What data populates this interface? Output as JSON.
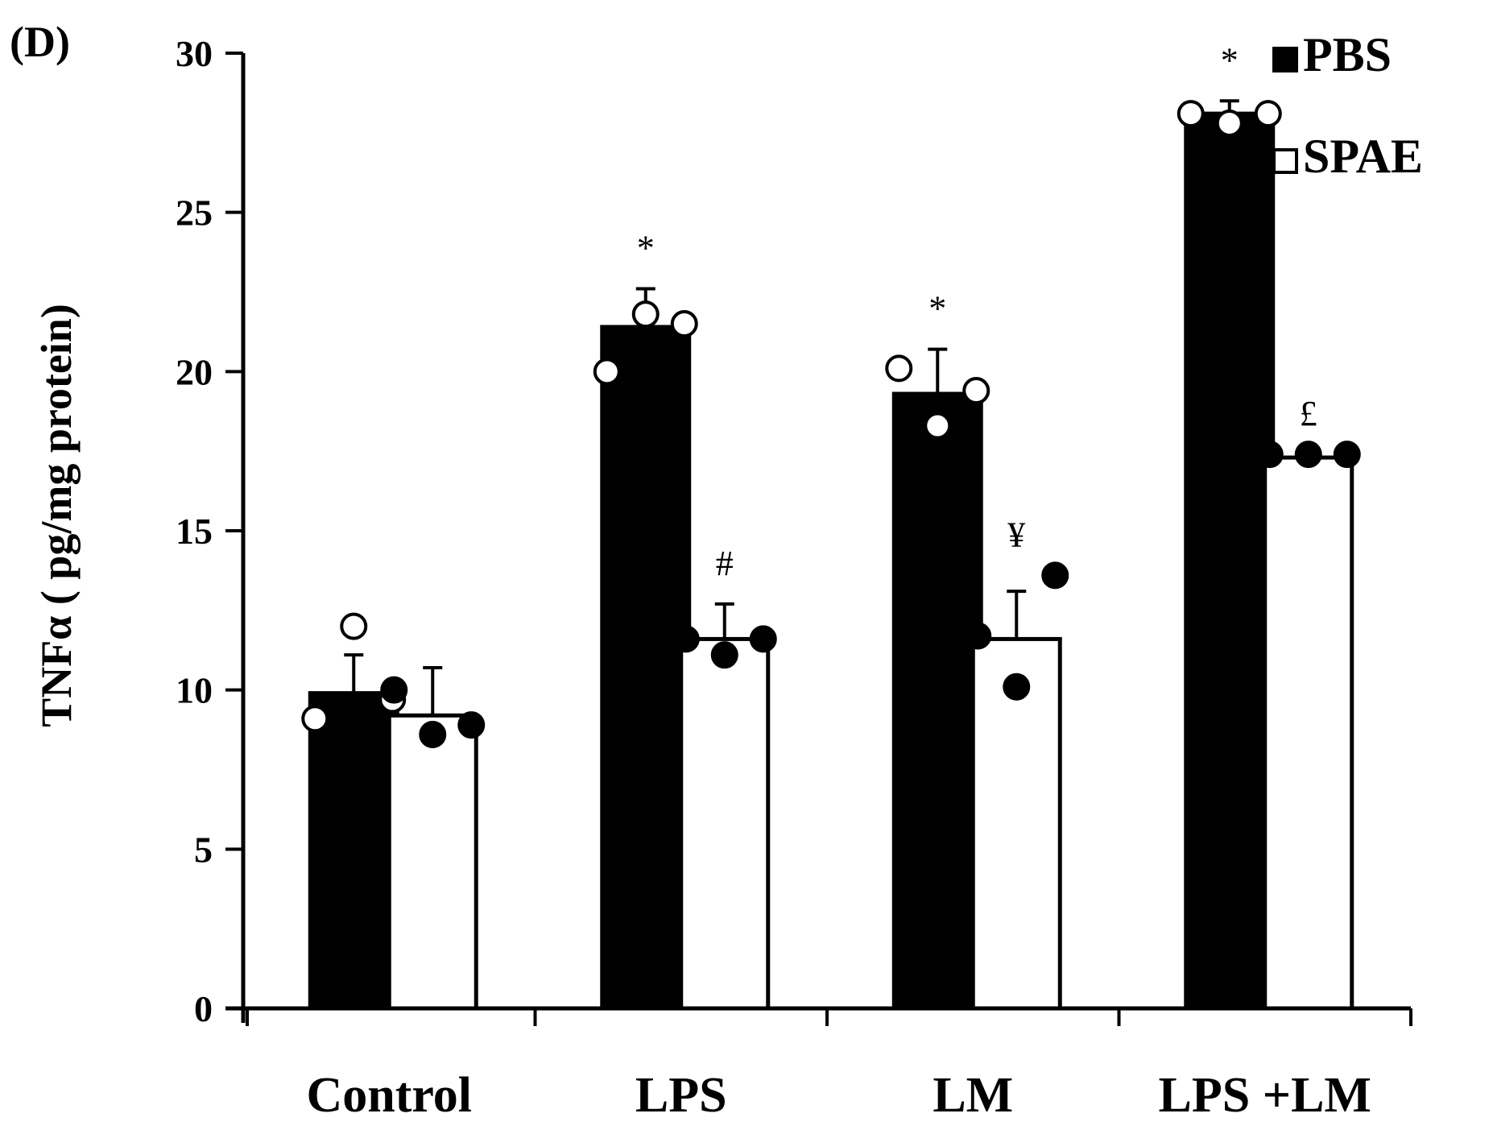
{
  "chart_data": {
    "type": "bar",
    "panel_label": "(D)",
    "title": "",
    "xlabel": "",
    "ylabel": "TNFα ( pg/mg protein)",
    "ylim": [
      0,
      30
    ],
    "yticks": [
      0,
      5,
      10,
      15,
      20,
      25,
      30
    ],
    "grid": false,
    "legend_position": "top-right",
    "categories": [
      "Control",
      "LPS",
      "LM",
      "LPS +LM"
    ],
    "series": [
      {
        "name": "PBS",
        "fill": "#000000",
        "values": [
          9.9,
          21.4,
          19.3,
          28.1
        ],
        "errors": [
          1.2,
          1.2,
          1.4,
          0.4
        ],
        "annotations": [
          "",
          "*",
          "*",
          "*"
        ],
        "points": [
          [
            9.1,
            12.0,
            9.7
          ],
          [
            20.0,
            21.8,
            21.5
          ],
          [
            20.1,
            18.3,
            19.4
          ],
          [
            28.1,
            27.8,
            28.1
          ]
        ],
        "point_fill": "#ffffff"
      },
      {
        "name": "SPAE",
        "fill": "#ffffff",
        "values": [
          9.2,
          11.6,
          11.6,
          17.3
        ],
        "errors": [
          1.5,
          1.1,
          1.5,
          0.0
        ],
        "annotations": [
          "",
          "#",
          "¥",
          "£"
        ],
        "points": [
          [
            10.0,
            8.6,
            8.9
          ],
          [
            11.6,
            11.1,
            11.6
          ],
          [
            11.7,
            10.1,
            13.6
          ],
          [
            17.4,
            17.4,
            17.4
          ]
        ],
        "point_fill": "#000000"
      }
    ]
  }
}
